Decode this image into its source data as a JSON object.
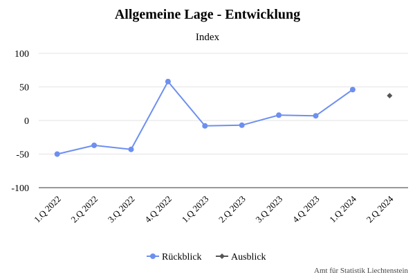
{
  "chart_data": {
    "type": "line",
    "title": "Allgemeine Lage - Entwicklung",
    "subtitle": "Index",
    "xlabel": "",
    "ylabel": "",
    "ylim": [
      -100,
      100
    ],
    "yticks": [
      100,
      50,
      0,
      -50,
      -100
    ],
    "ytick_labels": [
      "100",
      "50",
      "0",
      "-50",
      "-100"
    ],
    "categories": [
      "1.Q 2022",
      "2.Q 2022",
      "3.Q 2022",
      "4.Q 2022",
      "1.Q 2023",
      "2.Q 2023",
      "3.Q 2023",
      "4.Q 2023",
      "1.Q 2024",
      "2.Q 2024"
    ],
    "grid": true,
    "legend_position": "bottom-center",
    "series": [
      {
        "name": "Rückblick",
        "color": "#6d8ff0",
        "marker": "circle",
        "values": [
          -50,
          -37,
          -43,
          58,
          -8,
          -7,
          8,
          7,
          46,
          null
        ]
      },
      {
        "name": "Ausblick",
        "color": "#555555",
        "marker": "diamond",
        "values": [
          null,
          null,
          null,
          null,
          null,
          null,
          null,
          null,
          null,
          37
        ]
      }
    ]
  },
  "credit": "Amt für Statistik Liechtenstein"
}
